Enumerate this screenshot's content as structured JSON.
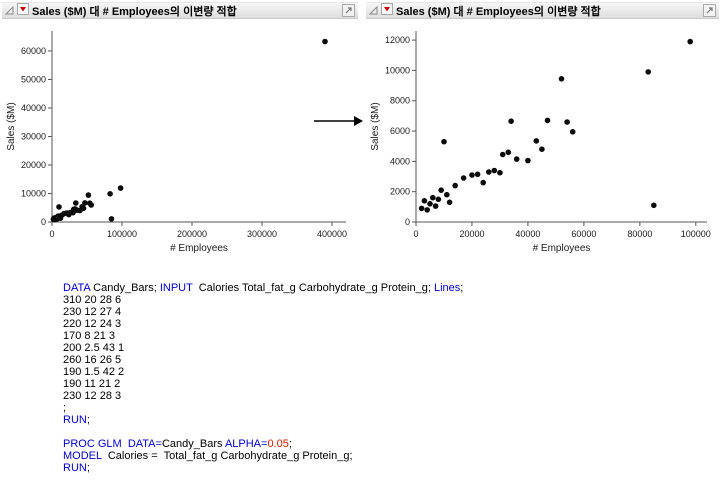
{
  "panels": [
    {
      "title": "Sales ($M) 대 # Employees의 이변량 적합"
    },
    {
      "title": "Sales ($M) 대 # Employees의 이변량 적합"
    }
  ],
  "colors": {
    "keyword_blue": "#0000cd",
    "number_red": "#cc2200",
    "point_black": "#0a0a0a",
    "disclosure_red": "#cc0000"
  },
  "chart_data": [
    {
      "type": "scatter",
      "title": "Sales ($M) 대 # Employees의 이변량 적합",
      "xlabel": "# Employees",
      "ylabel": "Sales ($M)",
      "xlim": [
        0,
        420000
      ],
      "ylim": [
        0,
        67000
      ],
      "xticks": [
        0,
        100000,
        200000,
        300000,
        400000
      ],
      "yticks": [
        0,
        10000,
        20000,
        30000,
        40000,
        50000,
        60000
      ],
      "grid": false,
      "legend": false,
      "points": [
        [
          2000,
          900
        ],
        [
          3000,
          1400
        ],
        [
          4000,
          800
        ],
        [
          5000,
          1200
        ],
        [
          6000,
          1600
        ],
        [
          7000,
          1050
        ],
        [
          8000,
          1500
        ],
        [
          9000,
          2100
        ],
        [
          10000,
          5300
        ],
        [
          11000,
          1800
        ],
        [
          12000,
          1300
        ],
        [
          14000,
          2400
        ],
        [
          17000,
          2900
        ],
        [
          20000,
          3100
        ],
        [
          22000,
          3150
        ],
        [
          24000,
          2600
        ],
        [
          26000,
          3300
        ],
        [
          28000,
          3400
        ],
        [
          30000,
          3250
        ],
        [
          31000,
          4450
        ],
        [
          33000,
          4600
        ],
        [
          34000,
          6650
        ],
        [
          36000,
          4150
        ],
        [
          40000,
          4050
        ],
        [
          43000,
          5350
        ],
        [
          45000,
          4800
        ],
        [
          47000,
          6700
        ],
        [
          52000,
          9450
        ],
        [
          54000,
          6600
        ],
        [
          56000,
          5950
        ],
        [
          83000,
          9900
        ],
        [
          85000,
          1100
        ],
        [
          98000,
          11900
        ],
        [
          390000,
          63300
        ]
      ]
    },
    {
      "type": "scatter",
      "title": "Sales ($M) 대 # Employees의 이변량 적합",
      "xlabel": "# Employees",
      "ylabel": "Sales ($M)",
      "xlim": [
        0,
        104000
      ],
      "ylim": [
        0,
        12600
      ],
      "xticks": [
        0,
        20000,
        40000,
        60000,
        80000,
        100000
      ],
      "yticks": [
        0,
        2000,
        4000,
        6000,
        8000,
        10000,
        12000
      ],
      "grid": false,
      "legend": false,
      "points": [
        [
          2000,
          900
        ],
        [
          3000,
          1400
        ],
        [
          4000,
          800
        ],
        [
          5000,
          1200
        ],
        [
          6000,
          1600
        ],
        [
          7000,
          1050
        ],
        [
          8000,
          1500
        ],
        [
          9000,
          2100
        ],
        [
          10000,
          5300
        ],
        [
          11000,
          1800
        ],
        [
          12000,
          1300
        ],
        [
          14000,
          2400
        ],
        [
          17000,
          2900
        ],
        [
          20000,
          3100
        ],
        [
          22000,
          3150
        ],
        [
          24000,
          2600
        ],
        [
          26000,
          3300
        ],
        [
          28000,
          3400
        ],
        [
          30000,
          3250
        ],
        [
          31000,
          4450
        ],
        [
          33000,
          4600
        ],
        [
          34000,
          6650
        ],
        [
          36000,
          4150
        ],
        [
          40000,
          4050
        ],
        [
          43000,
          5350
        ],
        [
          45000,
          4800
        ],
        [
          47000,
          6700
        ],
        [
          52000,
          9450
        ],
        [
          54000,
          6600
        ],
        [
          56000,
          5950
        ],
        [
          83000,
          9900
        ],
        [
          85000,
          1100
        ],
        [
          98000,
          11900
        ]
      ]
    }
  ],
  "code": {
    "lines": [
      {
        "segments": [
          {
            "t": "DATA",
            "c": "kw"
          },
          {
            "t": " Candy_Bars; ",
            "c": "txt"
          },
          {
            "t": "INPUT",
            "c": "kw"
          },
          {
            "t": "  Calories Total_fat_g Carbohydrate_g Protein_g; ",
            "c": "txt"
          },
          {
            "t": "Lines",
            "c": "kw"
          },
          {
            "t": ";",
            "c": "txt"
          }
        ]
      },
      {
        "segments": [
          {
            "t": "310 20 28 6",
            "c": "txt"
          }
        ]
      },
      {
        "segments": [
          {
            "t": "230 12 27 4",
            "c": "txt"
          }
        ]
      },
      {
        "segments": [
          {
            "t": "220 12 24 3",
            "c": "txt"
          }
        ]
      },
      {
        "segments": [
          {
            "t": "170 8 21 3",
            "c": "txt"
          }
        ]
      },
      {
        "segments": [
          {
            "t": "200 2.5 43 1",
            "c": "txt"
          }
        ]
      },
      {
        "segments": [
          {
            "t": "260 16 26 5",
            "c": "txt"
          }
        ]
      },
      {
        "segments": [
          {
            "t": "190 1.5 42 2",
            "c": "txt"
          }
        ]
      },
      {
        "segments": [
          {
            "t": "190 11 21 2",
            "c": "txt"
          }
        ]
      },
      {
        "segments": [
          {
            "t": "230 12 28 3",
            "c": "txt"
          }
        ]
      },
      {
        "segments": [
          {
            "t": ";",
            "c": "txt"
          }
        ]
      },
      {
        "segments": [
          {
            "t": "RUN",
            "c": "kw"
          },
          {
            "t": ";",
            "c": "txt"
          }
        ]
      },
      {
        "segments": []
      },
      {
        "segments": [
          {
            "t": "PROC GLM",
            "c": "kw"
          },
          {
            "t": "  ",
            "c": "txt"
          },
          {
            "t": "DATA=",
            "c": "kw"
          },
          {
            "t": "Candy_Bars ",
            "c": "txt"
          },
          {
            "t": "ALPHA=",
            "c": "kw"
          },
          {
            "t": "0.05",
            "c": "num"
          },
          {
            "t": ";",
            "c": "txt"
          }
        ]
      },
      {
        "segments": [
          {
            "t": "MODEL",
            "c": "kw"
          },
          {
            "t": "  Calories =  Total_fat_g Carbohydrate_g Protein_g;",
            "c": "txt"
          }
        ]
      },
      {
        "segments": [
          {
            "t": "RUN",
            "c": "kw"
          },
          {
            "t": ";",
            "c": "txt"
          }
        ]
      }
    ]
  }
}
